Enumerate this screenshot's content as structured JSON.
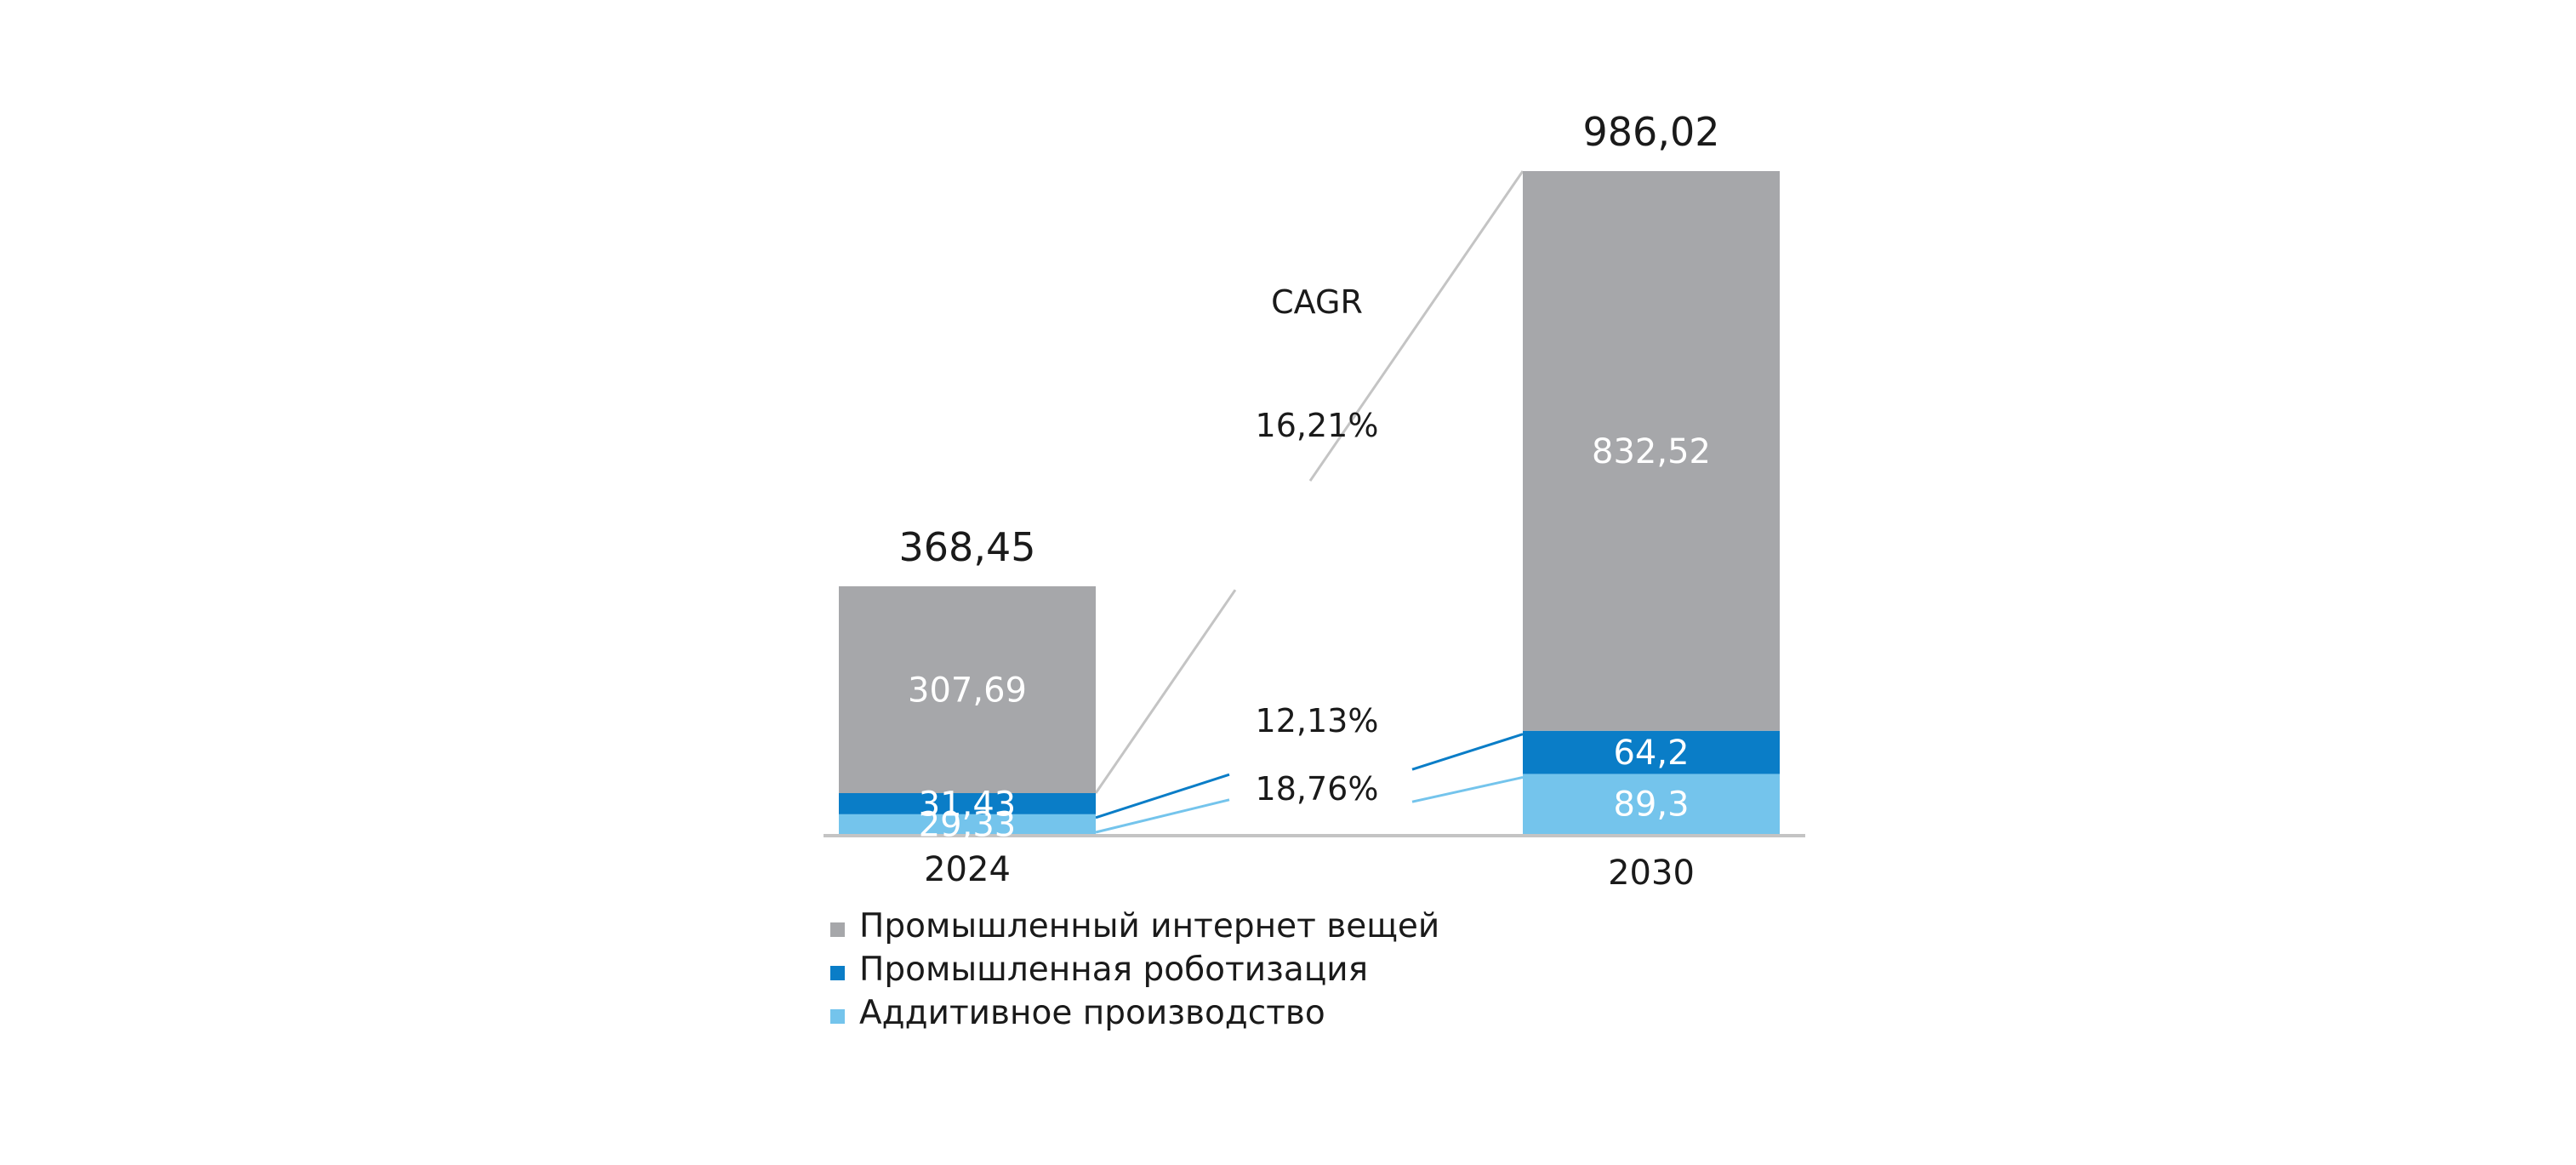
{
  "chart_data": {
    "type": "bar",
    "stacked": true,
    "categories": [
      "2024",
      "2030"
    ],
    "series": [
      {
        "name": "Аддитивное производство",
        "color": "#74c4ec",
        "values": [
          29.33,
          89.3
        ],
        "labels": [
          "29,33",
          "89,3"
        ]
      },
      {
        "name": "Промышленная роботизация",
        "color": "#0a7dc7",
        "values": [
          31.43,
          64.2
        ],
        "labels": [
          "31,43",
          "64,2"
        ]
      },
      {
        "name": "Промышленный интернет вещей",
        "color": "#a6a7aa",
        "values": [
          307.69,
          832.52
        ],
        "labels": [
          "307,69",
          "832,52"
        ]
      }
    ],
    "totals": [
      368.45,
      986.02
    ],
    "total_labels": [
      "368,45",
      "986,02"
    ],
    "cagr": {
      "title": "CAGR",
      "values": [
        {
          "series": "Промышленный интернет вещей",
          "label": "16,21%"
        },
        {
          "series": "Промышленная роботизация",
          "label": "12,13%"
        },
        {
          "series": "Аддитивное производство",
          "label": "18,76%"
        }
      ]
    },
    "legend": [
      {
        "label": "Промышленный интернет вещей",
        "color": "#a6a7aa"
      },
      {
        "label": "Промышленная роботизация",
        "color": "#0a7dc7"
      },
      {
        "label": "Аддитивное производство",
        "color": "#74c4ec"
      }
    ],
    "ylim": [
      0,
      1000
    ],
    "grid": false
  }
}
